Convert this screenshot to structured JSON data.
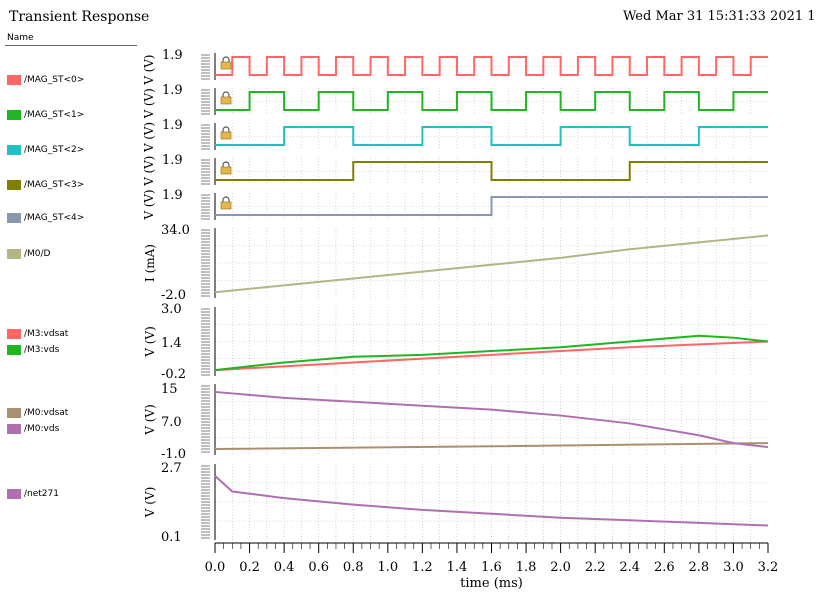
{
  "window": {
    "title": "Transient Response",
    "timestamp": "Wed Mar 31 15:31:33 2021  1",
    "name_header": "Name"
  },
  "legend": [
    {
      "label": "/MAG_ST<0>",
      "color": "#ff6666"
    },
    {
      "label": "/MAG_ST<1>",
      "color": "#22b522"
    },
    {
      "label": "/MAG_ST<2>",
      "color": "#22c0c0"
    },
    {
      "label": "/MAG_ST<3>",
      "color": "#808000"
    },
    {
      "label": "/MAG_ST<4>",
      "color": "#8a97b0"
    },
    {
      "label": "/M0/D",
      "color": "#b4b487"
    },
    {
      "label": "/M3:vdsat",
      "color": "#ff6666"
    },
    {
      "label": "/M3:vds",
      "color": "#22b522"
    },
    {
      "label": "/M0:vdsat",
      "color": "#aa9070"
    },
    {
      "label": "/M0:vds",
      "color": "#b070b0"
    },
    {
      "label": "/net271",
      "color": "#b070b0"
    }
  ],
  "chart_data": {
    "type": "line",
    "xlabel": "time (ms)",
    "x_range": [
      0.0,
      3.2
    ],
    "x_ticks": [
      "0.0",
      "0.2",
      "0.4",
      "0.6",
      "0.8",
      "1.0",
      "1.2",
      "1.4",
      "1.6",
      "1.8",
      "2.0",
      "2.2",
      "2.4",
      "2.6",
      "2.8",
      "3.0",
      "3.2"
    ],
    "grid": true,
    "lock_icon": "lock-icon",
    "digital_panels": [
      {
        "series": "/MAG_ST<0>",
        "color": "#ff6666",
        "high_label": "1.9",
        "ylabel": "V (V)",
        "period_ms": 0.2
      },
      {
        "series": "/MAG_ST<1>",
        "color": "#22b522",
        "high_label": "1.9",
        "ylabel": "V (V)",
        "period_ms": 0.4
      },
      {
        "series": "/MAG_ST<2>",
        "color": "#22c0c0",
        "high_label": "1.9",
        "ylabel": "V (V)",
        "period_ms": 0.8
      },
      {
        "series": "/MAG_ST<3>",
        "color": "#808000",
        "high_label": "1.9",
        "ylabel": "V (V)",
        "period_ms": 1.6
      },
      {
        "series": "/MAG_ST<4>",
        "color": "#8a97b0",
        "high_label": "1.9",
        "ylabel": "V (V)",
        "period_ms": 3.2
      }
    ],
    "analog_panels": [
      {
        "ylabel": "I (mA)",
        "ylim": [
          -2.0,
          34.0
        ],
        "tick_labels": [
          "34.0",
          "-2.0"
        ],
        "series": [
          {
            "name": "/M0/D",
            "color": "#b4b487",
            "x": [
              0.0,
              0.4,
              0.8,
              1.2,
              1.6,
              2.0,
              2.4,
              2.8,
              3.2
            ],
            "y": [
              -1.0,
              3.0,
              7.0,
              11.0,
              15.0,
              19.0,
              24.0,
              28.0,
              32.0
            ]
          }
        ]
      },
      {
        "ylabel": "V (V)",
        "ylim": [
          -0.2,
          3.0
        ],
        "tick_labels": [
          "3.0",
          "1.4",
          "-0.2"
        ],
        "series": [
          {
            "name": "/M3:vdsat",
            "color": "#ff6666",
            "x": [
              0.0,
              0.8,
              1.6,
              2.4,
              3.2
            ],
            "y": [
              -0.1,
              0.3,
              0.7,
              1.1,
              1.4
            ]
          },
          {
            "name": "/M3:vds",
            "color": "#22b522",
            "x": [
              0.0,
              0.4,
              0.8,
              1.2,
              1.6,
              2.0,
              2.4,
              2.8,
              3.0,
              3.2
            ],
            "y": [
              -0.1,
              0.3,
              0.6,
              0.7,
              0.9,
              1.1,
              1.4,
              1.7,
              1.6,
              1.4
            ]
          }
        ]
      },
      {
        "ylabel": "V (V)",
        "ylim": [
          -1.0,
          15.0
        ],
        "tick_labels": [
          "15",
          "7.0",
          "-1.0"
        ],
        "series": [
          {
            "name": "/M0:vdsat",
            "color": "#aa9070",
            "x": [
              0.0,
              1.6,
              3.2
            ],
            "y": [
              -0.5,
              0.2,
              1.0
            ]
          },
          {
            "name": "/M0:vds",
            "color": "#b070b0",
            "x": [
              0.0,
              0.4,
              0.8,
              1.2,
              1.6,
              2.0,
              2.4,
              2.8,
              3.0,
              3.2
            ],
            "y": [
              14.0,
              12.5,
              11.5,
              10.5,
              9.5,
              8.0,
              6.0,
              3.0,
              1.0,
              0.0
            ]
          }
        ]
      },
      {
        "ylabel": "V (V)",
        "ylim": [
          0.1,
          2.7
        ],
        "tick_labels": [
          "2.7",
          "0.1"
        ],
        "series": [
          {
            "name": "/net271",
            "color": "#b070b0",
            "x": [
              0.0,
              0.1,
              0.4,
              0.8,
              1.2,
              1.6,
              2.0,
              2.4,
              2.8,
              3.2
            ],
            "y": [
              2.4,
              1.8,
              1.55,
              1.3,
              1.1,
              0.95,
              0.8,
              0.7,
              0.6,
              0.5
            ]
          }
        ]
      }
    ]
  }
}
